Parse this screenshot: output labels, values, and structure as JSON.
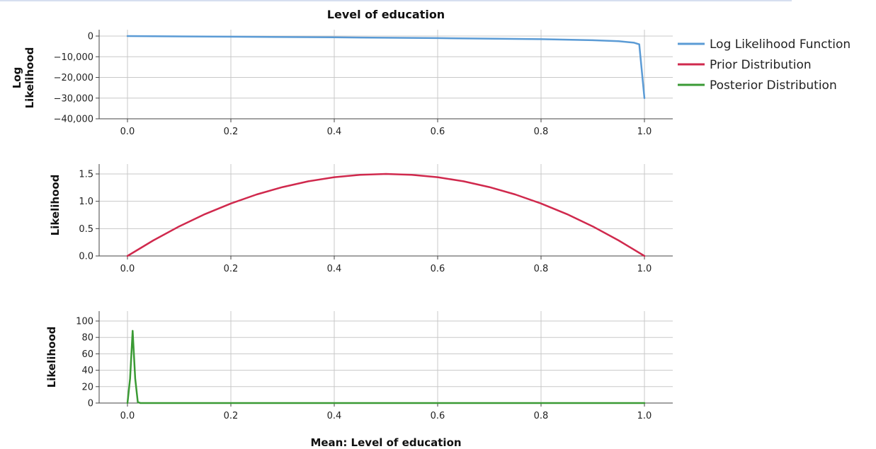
{
  "chart_data": {
    "title": "Level of education",
    "xlabel": "Mean: Level of education",
    "x_ticks": [
      "0.0",
      "0.2",
      "0.4",
      "0.6",
      "0.8",
      "1.0"
    ],
    "x_tick_values": [
      0,
      0.2,
      0.4,
      0.6,
      0.8,
      1.0
    ],
    "xlim": [
      0,
      1
    ],
    "legend": {
      "placement": "top-right",
      "entries": [
        {
          "label": "Log Likelihood Function",
          "color": "#5b9bd5"
        },
        {
          "label": "Prior Distribution",
          "color": "#d0294d"
        },
        {
          "label": "Posterior Distribution",
          "color": "#3a9a34"
        }
      ]
    },
    "panels": [
      {
        "type": "line",
        "ylabel_lines": [
          "Log",
          "Likelihood"
        ],
        "ylim": [
          -40000,
          0
        ],
        "y_ticks": [
          0,
          -10000,
          -20000,
          -30000,
          -40000
        ],
        "y_tick_labels": [
          "0",
          "−10,000",
          "−20,000",
          "−30,000",
          "−40,000"
        ],
        "grid": true,
        "series": [
          {
            "name": "Log Likelihood Function",
            "color": "#5b9bd5",
            "x": [
              0,
              0.2,
              0.4,
              0.6,
              0.8,
              0.9,
              0.95,
              0.98,
              0.99,
              1.0
            ],
            "y": [
              0,
              -300,
              -600,
              -1000,
              -1500,
              -2000,
              -2500,
              -3200,
              -4000,
              -30000
            ]
          }
        ]
      },
      {
        "type": "line",
        "ylabel_lines": [
          "Likelihood"
        ],
        "ylim": [
          0,
          1.6
        ],
        "y_ticks": [
          0,
          0.5,
          1.0,
          1.5
        ],
        "y_tick_labels": [
          "0.0",
          "0.5",
          "1.0",
          "1.5"
        ],
        "grid": true,
        "series": [
          {
            "name": "Prior Distribution",
            "color": "#d0294d",
            "x": [
              0,
              0.05,
              0.1,
              0.15,
              0.2,
              0.25,
              0.3,
              0.35,
              0.4,
              0.45,
              0.5,
              0.55,
              0.6,
              0.65,
              0.7,
              0.75,
              0.8,
              0.85,
              0.9,
              0.95,
              1.0
            ],
            "y": [
              0,
              0.285,
              0.54,
              0.765,
              0.96,
              1.125,
              1.26,
              1.365,
              1.44,
              1.485,
              1.5,
              1.485,
              1.44,
              1.365,
              1.26,
              1.125,
              0.96,
              0.765,
              0.54,
              0.285,
              0
            ]
          }
        ]
      },
      {
        "type": "line",
        "ylabel_lines": [
          "Likelihood"
        ],
        "ylim": [
          0,
          110
        ],
        "y_ticks": [
          0,
          20,
          40,
          60,
          80,
          100
        ],
        "y_tick_labels": [
          "0",
          "20",
          "40",
          "60",
          "80",
          "100"
        ],
        "grid": true,
        "series": [
          {
            "name": "Posterior Distribution",
            "color": "#3a9a34",
            "x": [
              0,
              0.005,
              0.01,
              0.015,
              0.02,
              0.025,
              0.05,
              0.2,
              0.5,
              0.8,
              1.0
            ],
            "y": [
              0,
              30,
              88,
              30,
              1,
              0,
              0,
              0,
              0,
              0,
              0
            ]
          }
        ]
      }
    ]
  }
}
